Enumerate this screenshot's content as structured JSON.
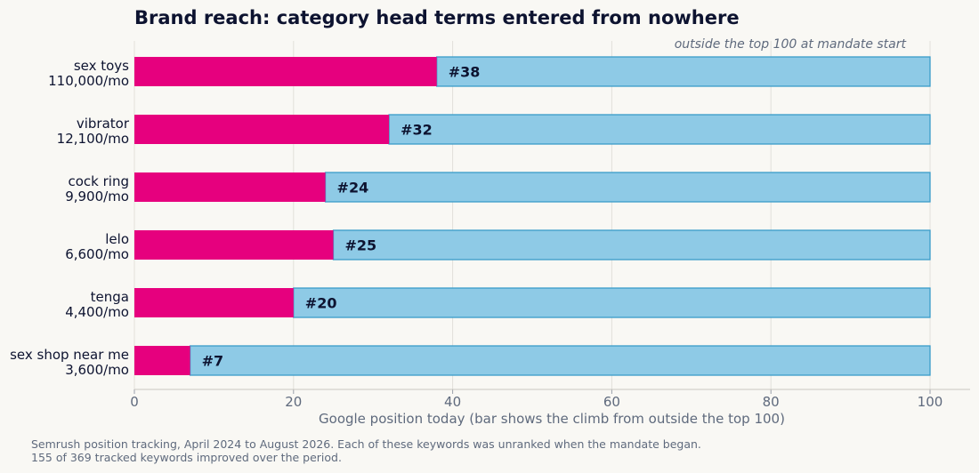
{
  "chart_data": {
    "type": "bar",
    "orientation": "horizontal",
    "title": "Brand reach: category head terms entered from nowhere",
    "annotation": "outside the top 100 at mandate start",
    "xlabel": "Google position today (bar shows the climb from outside the top 100)",
    "xlim": [
      0,
      100
    ],
    "xticks": [
      0,
      20,
      40,
      60,
      80,
      100
    ],
    "grid": true,
    "categories": [
      {
        "term": "sex toys",
        "volume": "110,000/mo"
      },
      {
        "term": "vibrator",
        "volume": "12,100/mo"
      },
      {
        "term": "cock ring",
        "volume": "9,900/mo"
      },
      {
        "term": "lelo",
        "volume": "6,600/mo"
      },
      {
        "term": "tenga",
        "volume": "4,400/mo"
      },
      {
        "term": "sex shop near me",
        "volume": "3,600/mo"
      }
    ],
    "values": [
      38,
      32,
      24,
      25,
      20,
      7
    ],
    "value_labels": [
      "#38",
      "#32",
      "#24",
      "#25",
      "#20",
      "#7"
    ],
    "range_end": 100,
    "colors": {
      "position": "#e6007e",
      "climb": "#8ecae6",
      "climb_edge": "#3a9cc9"
    }
  },
  "footnote": {
    "line1": "Semrush position tracking, April 2024 to August 2026. Each of these keywords was unranked when the mandate began.",
    "line2": "155 of 369 tracked keywords improved over the period."
  }
}
